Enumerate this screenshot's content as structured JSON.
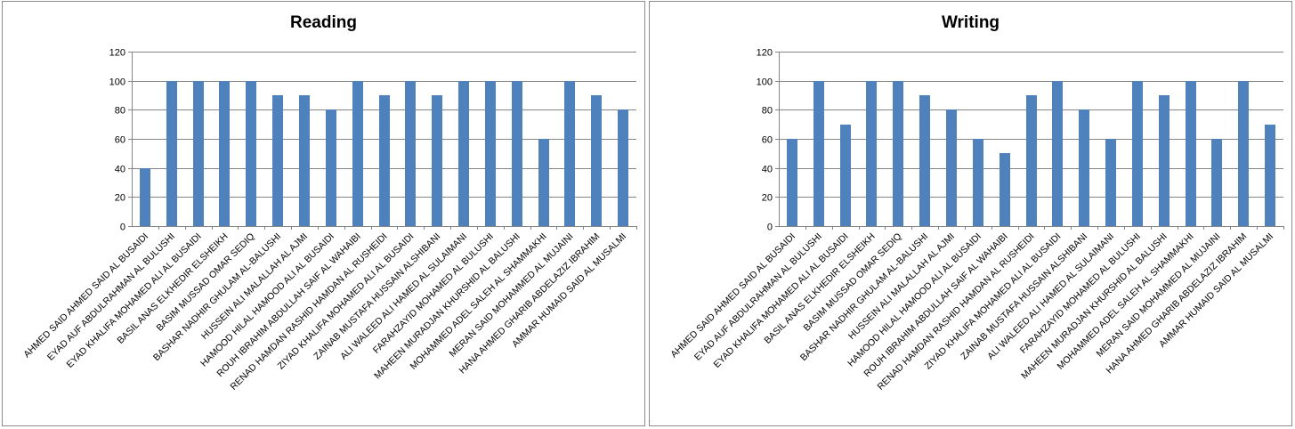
{
  "chart_data": [
    {
      "type": "bar",
      "title": "Reading",
      "xlabel": "",
      "ylabel": "",
      "ylim": [
        0,
        120
      ],
      "yticks": [
        0,
        20,
        40,
        60,
        80,
        100,
        120
      ],
      "grid": true,
      "categories": [
        "AHMED SAID AHMED  SAID AL BUSAIDI",
        "EYAD AUF ABDULRAHMAN  AL BULUSHI",
        "EYAD KHALIFA MOHAMED ALI AL BUSAIDI",
        "BASIL ANAS ELKHEDIR  ELSHEIKH",
        "BASIM MUSSAD  OMAR SEDIQ",
        "BASHAR NADHIR  GHULAM  AL-BALUSHI",
        "HUSSEIN ALI MALALLAH AL AJMI",
        "HAMOOD HILAL HAMOOD ALI  AL BUSAIDI",
        "ROUH IBRAHIM  ABDULLAH SAIF AL WAHAIBI",
        "RENAD HAMDAN RASHID HAMDAN AL RUSHEIDI",
        "ZIYAD KHALIFA MOHAMED ALI AL BUSAIDI",
        "ZAINAB MUSTAFA  HUSSAIN  ALSHIBANI",
        "ALI WALEED ALI HAMED  AL SULAIMANI",
        "FARAHZAYID MOHAMED  AL BULUSHI",
        "MAHEEN MURADJAN KHURSHID  AL BALUSHI",
        "MOHAMMED ADEL SALEH AL SHAMMAKHI",
        "MERAN SAID MOHAMMED  AL MUJAINI",
        "HANA AHMED GHARIB ABDELAZIZ IBRAHIM",
        "AMMAR HUMAID SAID AL MUSALMI"
      ],
      "values": [
        40,
        100,
        100,
        100,
        100,
        90,
        90,
        80,
        100,
        90,
        100,
        90,
        100,
        100,
        100,
        60,
        100,
        90,
        80
      ]
    },
    {
      "type": "bar",
      "title": "Writing",
      "xlabel": "",
      "ylabel": "",
      "ylim": [
        0,
        120
      ],
      "yticks": [
        0,
        20,
        40,
        60,
        80,
        100,
        120
      ],
      "grid": true,
      "categories": [
        "AHMED SAID AHMED  SAID AL BUSAIDI",
        "EYAD AUF ABDULRAHMAN  AL BULUSHI",
        "EYAD KHALIFA MOHAMED ALI AL BUSAIDI",
        "BASIL ANAS ELKHEDIR  ELSHEIKH",
        "BASIM MUSSAD  OMAR SEDIQ",
        "BASHAR NADHIR  GHULAM  AL-BALUSHI",
        "HUSSEIN ALI MALALLAH AL AJMI",
        "HAMOOD HILAL HAMOOD ALI  AL BUSAIDI",
        "ROUH IBRAHIM  ABDULLAH SAIF AL WAHAIBI",
        "RENAD HAMDAN RASHID HAMDAN AL RUSHEIDI",
        "ZIYAD KHALIFA MOHAMED ALI AL BUSAIDI",
        "ZAINAB MUSTAFA  HUSSAIN  ALSHIBANI",
        "ALI WALEED ALI HAMED  AL SULAIMANI",
        "FARAHZAYID MOHAMED  AL BULUSHI",
        "MAHEEN MURADJAN KHURSHID  AL BALUSHI",
        "MOHAMMED ADEL SALEH AL SHAMMAKHI",
        "MERAN SAID MOHAMMED  AL MUJAINI",
        "HANA AHMED GHARIB ABDELAZIZ IBRAHIM",
        "AMMAR HUMAID SAID AL MUSALMI"
      ],
      "values": [
        60,
        100,
        70,
        100,
        100,
        90,
        80,
        60,
        50,
        90,
        100,
        80,
        60,
        100,
        90,
        100,
        60,
        100,
        70
      ]
    }
  ],
  "colors": {
    "bar": "#4f81bd",
    "grid": "#868686",
    "border": "#8c8c8c"
  }
}
